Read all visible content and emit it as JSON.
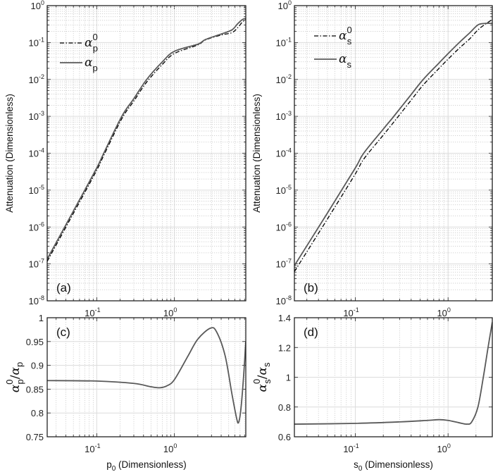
{
  "chart_data": [
    {
      "panel_label": "(a)",
      "type": "line",
      "xscale": "log",
      "yscale": "log",
      "xlim": [
        0.023,
        8.3
      ],
      "ylim": [
        1e-08,
        1
      ],
      "grid": true,
      "xticks": [
        0.1,
        1
      ],
      "xticklabels": [
        "10^-1",
        "10^0"
      ],
      "yticks": [
        1,
        0.1,
        0.01,
        0.001,
        0.0001,
        1e-05,
        1e-06,
        1e-07,
        1e-08
      ],
      "yticklabels": [
        "10^0",
        "10^-1",
        "10^-2",
        "10^-3",
        "10^-4",
        "10^-5",
        "10^-6",
        "10^-7",
        "10^-8"
      ],
      "xlabel": "",
      "ylabel": {
        "text": "Attenuation (Dimensionless)"
      },
      "legend_position": "top-left",
      "series": [
        {
          "name": {
            "sym": "α",
            "sub": "p",
            "sup": "0"
          },
          "style": "dashdot",
          "x": [
            0.023,
            0.05,
            0.1,
            0.123,
            0.21,
            0.3,
            0.44,
            0.7,
            1,
            2,
            2.5,
            4,
            5.5,
            6.5,
            7.5,
            8.3
          ],
          "y": [
            1.17e-07,
            2.34e-06,
            3.47e-05,
            8.7e-05,
            0.00086,
            0.00259,
            0.0085,
            0.0256,
            0.0505,
            0.086,
            0.117,
            0.16,
            0.185,
            0.25,
            0.36,
            0.43
          ]
        },
        {
          "name": {
            "sym": "α",
            "sub": "p",
            "sup": ""
          },
          "style": "solid",
          "x": [
            0.023,
            0.05,
            0.1,
            0.123,
            0.21,
            0.3,
            0.44,
            0.7,
            1,
            2,
            2.5,
            4,
            5.5,
            6.5,
            7.5,
            8.3
          ],
          "y": [
            1.35e-07,
            2.7e-06,
            4e-05,
            0.0001,
            0.001,
            0.003,
            0.01,
            0.03,
            0.058,
            0.09,
            0.12,
            0.17,
            0.22,
            0.32,
            0.42,
            0.45
          ]
        }
      ]
    },
    {
      "panel_label": "(b)",
      "type": "line",
      "xscale": "log",
      "yscale": "log",
      "xlim": [
        0.022,
        3
      ],
      "ylim": [
        1e-08,
        1
      ],
      "grid": true,
      "xticks": [
        0.1,
        1
      ],
      "xticklabels": [
        "10^-1",
        "10^0"
      ],
      "yticks": [
        1,
        0.1,
        0.01,
        0.001,
        0.0001,
        1e-05,
        1e-06,
        1e-07,
        1e-08
      ],
      "yticklabels": [
        "10^0",
        "10^-1",
        "10^-2",
        "10^-3",
        "10^-4",
        "10^-5",
        "10^-6",
        "10^-7",
        "10^-8"
      ],
      "xlabel": "",
      "ylabel": {
        "text": "Attenuation (Dimensionless)"
      },
      "legend_position": "top-left",
      "series": [
        {
          "name": {
            "sym": "α",
            "sub": "s",
            "sup": "0"
          },
          "style": "dashdot",
          "x": [
            0.022,
            0.05,
            0.1,
            0.123,
            0.2,
            0.26,
            0.4,
            0.54,
            0.8,
            1,
            1.32,
            1.7,
            2.1,
            2.5,
            3
          ],
          "y": [
            6.2e-08,
            1.65e-06,
            2.76e-05,
            6.9e-05,
            0.00031,
            0.0007,
            0.00275,
            0.0071,
            0.02,
            0.0355,
            0.07,
            0.124,
            0.22,
            0.31,
            0.42
          ]
        },
        {
          "name": {
            "sym": "α",
            "sub": "s",
            "sup": ""
          },
          "style": "solid",
          "x": [
            0.022,
            0.05,
            0.1,
            0.123,
            0.2,
            0.26,
            0.4,
            0.54,
            0.8,
            1,
            1.32,
            1.7,
            2.1,
            2.5,
            3
          ],
          "y": [
            9e-08,
            2.4e-06,
            4e-05,
            0.0001,
            0.00045,
            0.001,
            0.0039,
            0.01,
            0.028,
            0.05,
            0.1,
            0.18,
            0.3,
            0.33,
            0.33
          ]
        }
      ]
    },
    {
      "panel_label": "(c)",
      "type": "line",
      "xscale": "log",
      "yscale": "linear",
      "xlim": [
        0.023,
        8.3
      ],
      "ylim": [
        0.75,
        1
      ],
      "grid": true,
      "xticks": [
        0.1,
        1
      ],
      "xticklabels": [
        "10^-1",
        "10^0"
      ],
      "yticks": [
        0.75,
        0.8,
        0.85,
        0.9,
        0.95,
        1
      ],
      "yticklabels": [
        "0.75",
        "0.8",
        "0.85",
        "0.9",
        "0.95",
        "1"
      ],
      "xlabel": {
        "main": "p",
        "sub": "0",
        "rest": " (Dimensionless)"
      },
      "ylabel": {
        "sym": "α",
        "sub1": "p",
        "sup1": "0",
        "slash": "/",
        "sym2": "α",
        "sub2": "p"
      },
      "series": [
        {
          "style": "solid",
          "x": [
            0.023,
            0.1,
            0.3,
            0.5,
            0.65,
            0.8,
            1,
            1.5,
            2,
            2.9,
            3.5,
            4.5,
            5.5,
            6.3,
            6.7,
            7.2,
            7.8,
            8.3
          ],
          "y": [
            0.868,
            0.867,
            0.862,
            0.855,
            0.853,
            0.857,
            0.87,
            0.92,
            0.955,
            0.978,
            0.97,
            0.92,
            0.84,
            0.79,
            0.78,
            0.81,
            0.88,
            0.95
          ]
        }
      ]
    },
    {
      "panel_label": "(d)",
      "type": "line",
      "xscale": "log",
      "yscale": "linear",
      "xlim": [
        0.022,
        3
      ],
      "ylim": [
        0.6,
        1.4
      ],
      "grid": true,
      "xticks": [
        0.1,
        1
      ],
      "xticklabels": [
        "10^-1",
        "10^0"
      ],
      "yticks": [
        0.6,
        0.8,
        1,
        1.2,
        1.4
      ],
      "yticklabels": [
        "0.6",
        "0.8",
        "1",
        "1.2",
        "1.4"
      ],
      "xlabel": {
        "main": "s",
        "sub": "0",
        "rest": " (Dimensionless)"
      },
      "ylabel": {
        "sym": "α",
        "sub1": "s",
        "sup1": "0",
        "slash": "/",
        "sym2": "α",
        "sub2": "s"
      },
      "series": [
        {
          "style": "solid",
          "x": [
            0.022,
            0.1,
            0.3,
            0.6,
            0.8,
            1,
            1.3,
            1.6,
            1.8,
            2.1,
            2.4,
            2.7,
            3
          ],
          "y": [
            0.685,
            0.69,
            0.7,
            0.71,
            0.715,
            0.71,
            0.695,
            0.685,
            0.7,
            0.8,
            1.0,
            1.2,
            1.37
          ]
        }
      ]
    }
  ],
  "colors": {
    "solid_line": "#595959",
    "dashdot_line": "#000000",
    "major_grid": "#dcdcdc",
    "minor_grid": "#c4c4c4"
  }
}
